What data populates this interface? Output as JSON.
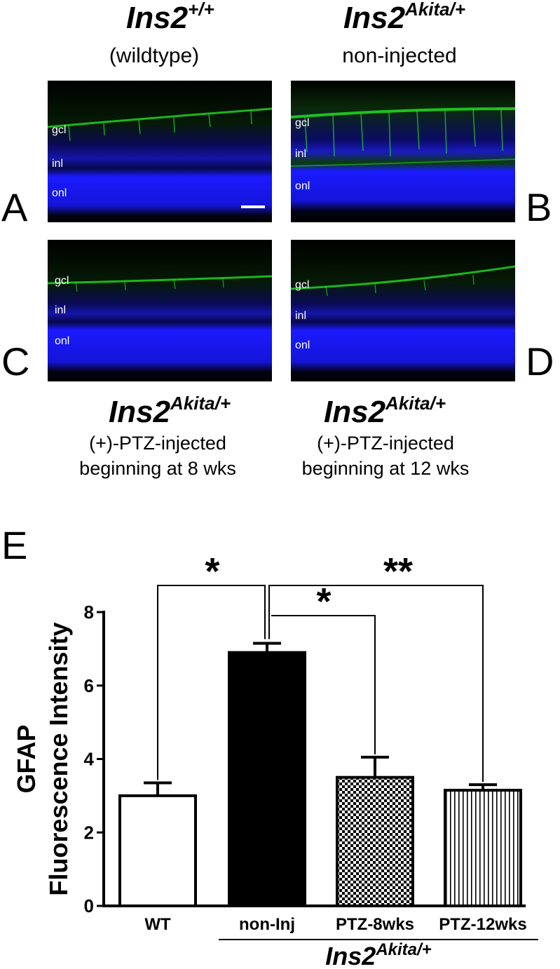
{
  "figure": {
    "panel_titles": {
      "top_left": {
        "main": "Ins2",
        "sup": "+/+",
        "sub": "(wildtype)"
      },
      "top_right": {
        "main": "Ins2",
        "sup": "Akita/+",
        "sub": "non-injected"
      },
      "bottom_left": {
        "main": "Ins2",
        "sup": "Akita/+",
        "sub_line1": "(+)-PTZ-injected",
        "sub_line2": "beginning at 8 wks"
      },
      "bottom_right": {
        "main": "Ins2",
        "sup": "Akita/+",
        "sub_line1": "(+)-PTZ-injected",
        "sub_line2": "beginning at 12 wks"
      }
    },
    "panel_letters": [
      "A",
      "B",
      "C",
      "D",
      "E"
    ],
    "layer_labels": {
      "gcl": "gcl",
      "inl": "inl",
      "onl": "onl"
    },
    "colors": {
      "gfap_stain": "#22dd22",
      "nuclear_stain": "#1a1aff",
      "background": "#000000"
    }
  },
  "chart_data": {
    "type": "bar",
    "categories": [
      "WT",
      "non-Inj",
      "PTZ-8wks",
      "PTZ-12wks"
    ],
    "values": [
      3.0,
      6.9,
      3.5,
      3.15
    ],
    "errors": [
      0.35,
      0.25,
      0.55,
      0.15
    ],
    "fills": [
      "white",
      "black",
      "checker",
      "vertical-lines"
    ],
    "ylabel_line1": "GFAP",
    "ylabel_line2": "Fluorescence Intensity",
    "ylim": [
      0,
      8
    ],
    "yticks": [
      "0",
      "2",
      "4",
      "6",
      "8"
    ],
    "group_label": {
      "main": "Ins2",
      "sup": "Akita/+"
    },
    "significance": [
      {
        "from": "WT",
        "to": "non-Inj",
        "label": "*"
      },
      {
        "from": "non-Inj",
        "to": "PTZ-8wks",
        "label": "*"
      },
      {
        "from": "non-Inj",
        "to": "PTZ-12wks",
        "label": "**"
      }
    ]
  }
}
